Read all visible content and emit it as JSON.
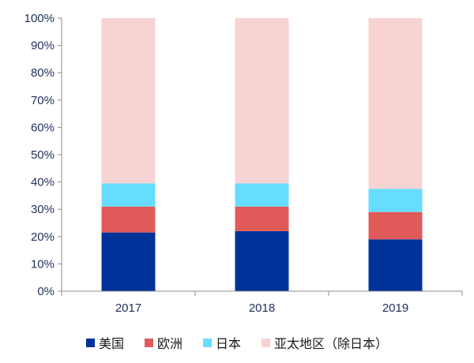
{
  "chart_data": {
    "type": "bar",
    "stacked": true,
    "categories": [
      "2017",
      "2018",
      "2019"
    ],
    "series": [
      {
        "name": "美国",
        "color": "#003399",
        "values": [
          21.5,
          22,
          19
        ]
      },
      {
        "name": "欧洲",
        "color": "#e05a5a",
        "values": [
          9.5,
          9,
          10
        ]
      },
      {
        "name": "日本",
        "color": "#66ddff",
        "values": [
          8.5,
          8.5,
          8.5
        ]
      },
      {
        "name": "亚太地区（除日本）",
        "color": "#f8d3d3",
        "values": [
          60.5,
          60.5,
          62.5
        ]
      }
    ],
    "y_ticks": [
      "0%",
      "10%",
      "20%",
      "30%",
      "40%",
      "50%",
      "60%",
      "70%",
      "80%",
      "90%",
      "100%"
    ],
    "ylim": [
      0,
      100
    ],
    "grid": false,
    "legend_position": "bottom"
  }
}
